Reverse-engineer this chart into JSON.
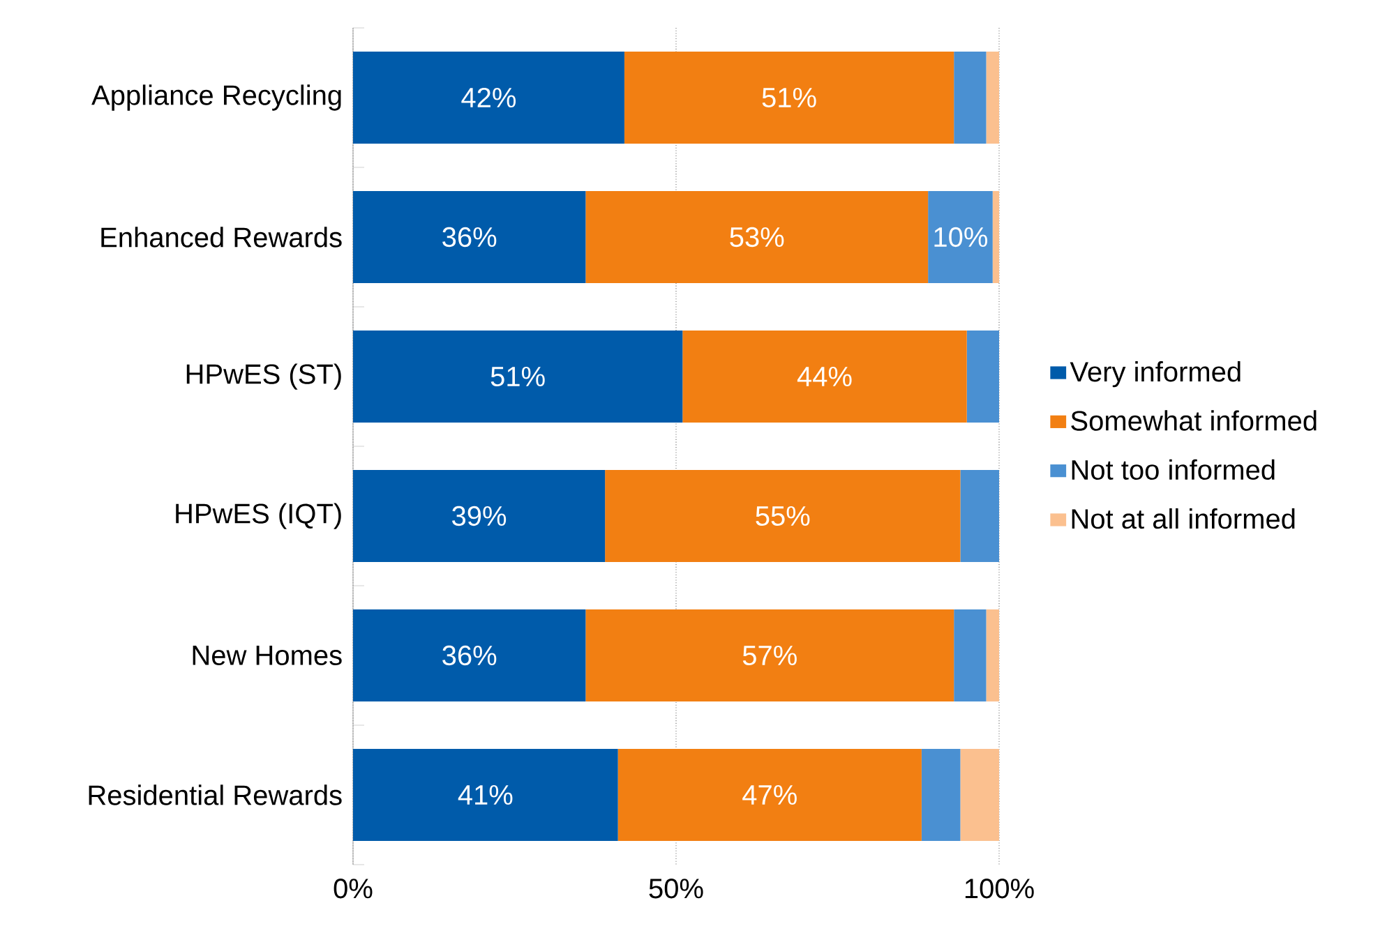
{
  "chart_data": {
    "type": "bar",
    "orientation": "horizontal",
    "stacked": true,
    "categories": [
      "Appliance Recycling",
      "Enhanced Rewards",
      "HPwES (ST)",
      "HPwES (IQT)",
      "New Homes",
      "Residential Rewards"
    ],
    "series": [
      {
        "name": "Very informed",
        "color": "#005baa",
        "values": [
          42,
          36,
          51,
          39,
          36,
          41
        ],
        "value_labels": [
          "42%",
          "36%",
          "51%",
          "39%",
          "36%",
          "41%"
        ]
      },
      {
        "name": "Somewhat informed",
        "color": "#f27f12",
        "values": [
          51,
          53,
          44,
          55,
          57,
          47
        ],
        "value_labels": [
          "51%",
          "53%",
          "44%",
          "55%",
          "57%",
          "47%"
        ]
      },
      {
        "name": "Not too informed",
        "color": "#4a90d2",
        "values": [
          5,
          10,
          5,
          6,
          5,
          6
        ],
        "value_labels": [
          null,
          "10%",
          null,
          null,
          null,
          null
        ]
      },
      {
        "name": "Not at all informed",
        "color": "#fbc08f",
        "values": [
          2,
          1,
          0,
          0,
          2,
          6
        ],
        "value_labels": [
          null,
          null,
          null,
          null,
          null,
          null
        ]
      }
    ],
    "xlim": [
      0,
      100
    ],
    "xticks": [
      {
        "value": 0,
        "label": "0%"
      },
      {
        "value": 50,
        "label": "50%"
      },
      {
        "value": 100,
        "label": "100%"
      }
    ],
    "grid": "x",
    "legend": "right"
  }
}
